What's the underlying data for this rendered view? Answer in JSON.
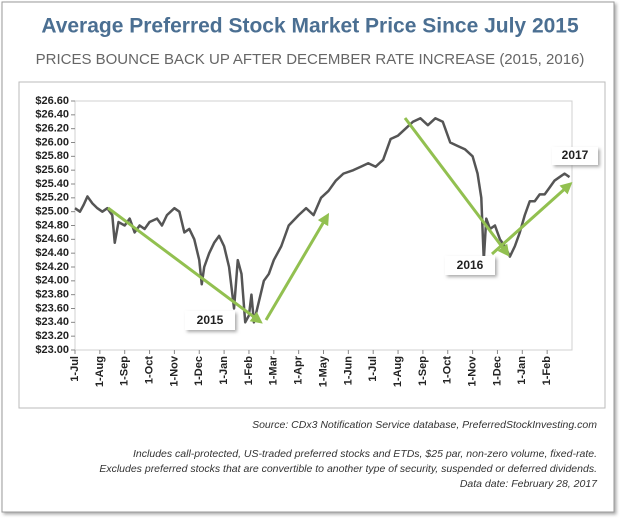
{
  "chart_data": {
    "type": "line",
    "title": "Average Preferred Stock Market Price Since July 2015",
    "subtitle": "PRICES BOUNCE BACK UP AFTER DECEMBER RATE INCREASE (2015, 2016)",
    "color": "#555555",
    "x": [
      0.0,
      0.2,
      0.35,
      0.5,
      0.7,
      0.9,
      1.1,
      1.3,
      1.5,
      1.6,
      1.75,
      2.0,
      2.2,
      2.4,
      2.6,
      2.8,
      3.0,
      3.3,
      3.5,
      3.7,
      4.0,
      4.2,
      4.4,
      4.6,
      4.8,
      5.0,
      5.1,
      5.2,
      5.4,
      5.6,
      5.8,
      6.0,
      6.2,
      6.4,
      6.55,
      6.7,
      6.85,
      7.0,
      7.1,
      7.2,
      7.4,
      7.6,
      7.8,
      8.0,
      8.3,
      8.6,
      9.0,
      9.3,
      9.6,
      9.9,
      10.2,
      10.5,
      10.8,
      11.2,
      11.5,
      11.8,
      12.1,
      12.4,
      12.7,
      13.0,
      13.3,
      13.6,
      13.9,
      14.2,
      14.5,
      14.8,
      15.1,
      15.4,
      15.7,
      16.0,
      16.2,
      16.35,
      16.45,
      16.55,
      16.7,
      16.9,
      17.1,
      17.3,
      17.5,
      17.7,
      17.9,
      18.1,
      18.3,
      18.5,
      18.7,
      18.9,
      19.1,
      19.3,
      19.5,
      19.7,
      19.9
    ],
    "values": [
      25.05,
      25.0,
      25.1,
      25.22,
      25.12,
      25.05,
      25.0,
      25.05,
      24.95,
      24.55,
      24.85,
      24.8,
      24.9,
      24.7,
      24.8,
      24.75,
      24.85,
      24.9,
      24.8,
      24.95,
      25.05,
      25.0,
      24.7,
      24.75,
      24.6,
      24.3,
      23.95,
      24.2,
      24.4,
      24.55,
      24.65,
      24.5,
      24.2,
      23.6,
      24.3,
      24.1,
      23.4,
      23.5,
      23.8,
      23.4,
      23.7,
      24.0,
      24.1,
      24.3,
      24.5,
      24.8,
      24.95,
      25.05,
      24.95,
      25.2,
      25.3,
      25.45,
      25.55,
      25.6,
      25.65,
      25.7,
      25.65,
      25.75,
      26.05,
      26.1,
      26.2,
      26.3,
      26.35,
      26.25,
      26.35,
      26.3,
      26.0,
      25.95,
      25.9,
      25.8,
      25.55,
      25.2,
      24.3,
      24.9,
      24.75,
      24.8,
      24.6,
      24.5,
      24.35,
      24.5,
      24.7,
      24.95,
      25.15,
      25.15,
      25.25,
      25.25,
      25.35,
      25.45,
      25.5,
      25.55,
      25.5
    ],
    "xlim": [
      0,
      20
    ],
    "xticks": [
      {
        "value": 0,
        "label": "1-Jul"
      },
      {
        "value": 1,
        "label": "1-Aug"
      },
      {
        "value": 2,
        "label": "1-Sep"
      },
      {
        "value": 3,
        "label": "1-Oct"
      },
      {
        "value": 4,
        "label": "1-Nov"
      },
      {
        "value": 5,
        "label": "1-Dec"
      },
      {
        "value": 6,
        "label": "1-Jan"
      },
      {
        "value": 7,
        "label": "1-Feb"
      },
      {
        "value": 8,
        "label": "1-Mar"
      },
      {
        "value": 9,
        "label": "1-Apr"
      },
      {
        "value": 10,
        "label": "1-May"
      },
      {
        "value": 11,
        "label": "1-Jun"
      },
      {
        "value": 12,
        "label": "1-Jul"
      },
      {
        "value": 13,
        "label": "1-Aug"
      },
      {
        "value": 14,
        "label": "1-Sep"
      },
      {
        "value": 15,
        "label": "1-Oct"
      },
      {
        "value": 16,
        "label": "1-Nov"
      },
      {
        "value": 17,
        "label": "1-Dec"
      },
      {
        "value": 18,
        "label": "1-Jan"
      },
      {
        "value": 19,
        "label": "1-Feb"
      }
    ],
    "ylim": [
      23.0,
      26.6
    ],
    "yticks": [
      {
        "value": 23.0,
        "label": "$23.00"
      },
      {
        "value": 23.2,
        "label": "$23.20"
      },
      {
        "value": 23.4,
        "label": "$23.40"
      },
      {
        "value": 23.6,
        "label": "$23.60"
      },
      {
        "value": 23.8,
        "label": "$23.80"
      },
      {
        "value": 24.0,
        "label": "$24.00"
      },
      {
        "value": 24.2,
        "label": "$24.20"
      },
      {
        "value": 24.4,
        "label": "$24.40"
      },
      {
        "value": 24.6,
        "label": "$24.60"
      },
      {
        "value": 24.8,
        "label": "$24.80"
      },
      {
        "value": 25.0,
        "label": "$25.00"
      },
      {
        "value": 25.2,
        "label": "$25.20"
      },
      {
        "value": 25.4,
        "label": "$25.40"
      },
      {
        "value": 25.6,
        "label": "$25.60"
      },
      {
        "value": 25.8,
        "label": "$25.80"
      },
      {
        "value": 26.0,
        "label": "$26.00"
      },
      {
        "value": 26.2,
        "label": "$26.20"
      },
      {
        "value": 26.4,
        "label": "$26.40"
      },
      {
        "value": 26.6,
        "label": "$26.60"
      }
    ],
    "grid": false,
    "annotations": [
      "2015",
      "2016",
      "2017"
    ],
    "source": "Source:  CDx3 Notification Service database, PreferredStockInvesting.com",
    "notes": [
      "Includes call-protected, US-traded preferred stocks and ETDs, $25 par, non-zero volume, fixed-rate.",
      "Excludes preferred stocks that are convertible to another type of security, suspended or deferred dividends.",
      "Data date: February 28, 2017"
    ]
  }
}
